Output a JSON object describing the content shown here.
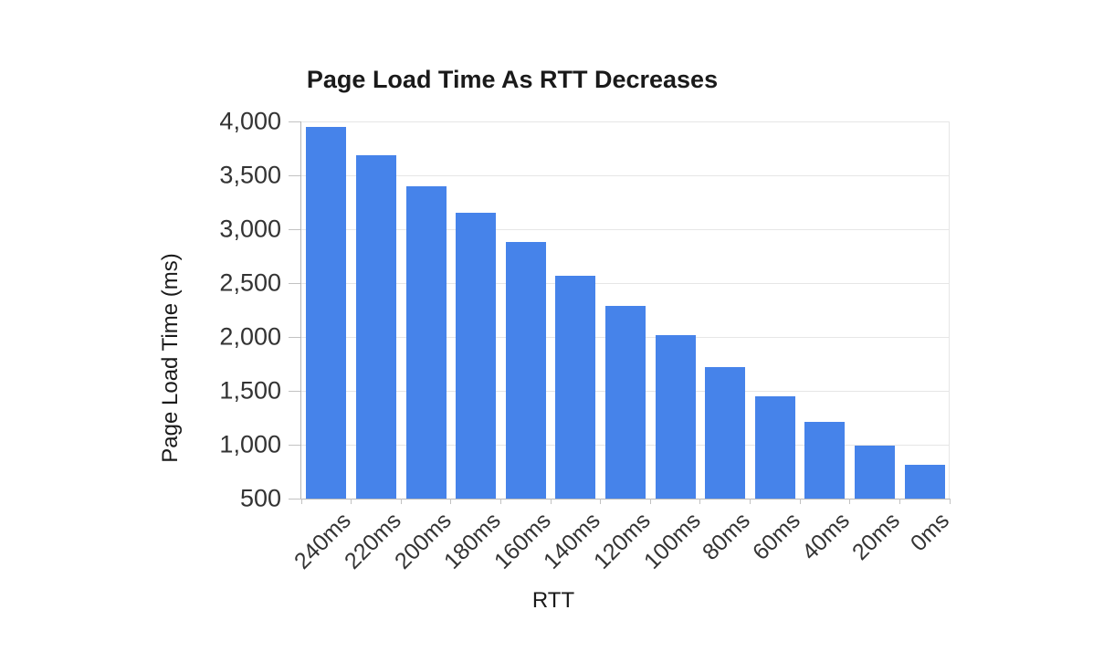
{
  "chart_data": {
    "type": "bar",
    "title": "Page Load Time As RTT Decreases",
    "xlabel": "RTT",
    "ylabel": "Page Load Time (ms)",
    "categories": [
      "240ms",
      "220ms",
      "200ms",
      "180ms",
      "160ms",
      "140ms",
      "120ms",
      "100ms",
      "80ms",
      "60ms",
      "40ms",
      "20ms",
      "0ms"
    ],
    "values": [
      3950,
      3690,
      3400,
      3150,
      2880,
      2570,
      2290,
      2020,
      1720,
      1450,
      1210,
      990,
      810
    ],
    "ylim": [
      500,
      4000
    ],
    "y_ticks": [
      {
        "value": 500,
        "label": "500"
      },
      {
        "value": 1000,
        "label": "1,000"
      },
      {
        "value": 1500,
        "label": "1,500"
      },
      {
        "value": 2000,
        "label": "2,000"
      },
      {
        "value": 2500,
        "label": "2,500"
      },
      {
        "value": 3000,
        "label": "3,000"
      },
      {
        "value": 3500,
        "label": "3,500"
      },
      {
        "value": 4000,
        "label": "4,000"
      }
    ],
    "grid": true,
    "legend": "none",
    "colors": {
      "bar": "#4683ea",
      "gridline": "#e6e6e6",
      "axis_line": "#b7b7b7",
      "tick_mark": "#c2c2c2",
      "tick_label": "#333333",
      "title": "#1a1a1a",
      "axis_title": "#1a1a1a",
      "background": "#ffffff"
    }
  }
}
